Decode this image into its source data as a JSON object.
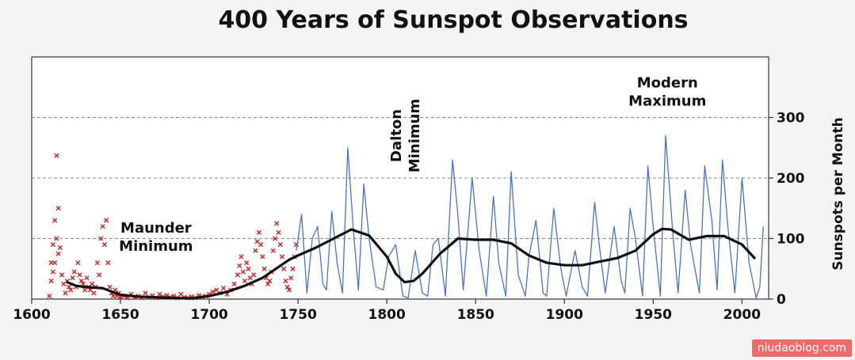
{
  "chart_data": {
    "type": "line",
    "title": "400 Years of Sunspot Observations",
    "ylabel": "Sunspots per Month",
    "xlabel": "",
    "xlim": [
      1600,
      2015
    ],
    "ylim": [
      0,
      400
    ],
    "xticks": [
      "1600",
      "1650",
      "1700",
      "1750",
      "1800",
      "1850",
      "1900",
      "1950",
      "2000"
    ],
    "yticks": [
      "0",
      "100",
      "200",
      "300"
    ],
    "grid": "horizontal dashed",
    "annotations": [
      {
        "lines": [
          "Maunder",
          "Minimum"
        ],
        "x": 1670,
        "y": 110
      },
      {
        "lines": [
          "Dalton",
          "Minimum"
        ],
        "x": 1808,
        "y": 270,
        "rotated": true
      },
      {
        "lines": [
          "Modern",
          "Maximum"
        ],
        "x": 1958,
        "y": 350
      }
    ],
    "colors": {
      "early": "#cc2222",
      "telescopic": "#4a72c8",
      "smooth": "#111111"
    },
    "series": [
      {
        "kind": "scatter",
        "marker": "x",
        "color": "#cc2222",
        "points": [
          [
            1610,
            5
          ],
          [
            1611,
            60
          ],
          [
            1611,
            30
          ],
          [
            1612,
            90
          ],
          [
            1612,
            45
          ],
          [
            1613,
            130
          ],
          [
            1613,
            60
          ],
          [
            1614,
            237
          ],
          [
            1614,
            100
          ],
          [
            1615,
            150
          ],
          [
            1615,
            75
          ],
          [
            1616,
            85
          ],
          [
            1617,
            40
          ],
          [
            1618,
            25
          ],
          [
            1619,
            10
          ],
          [
            1620,
            30
          ],
          [
            1621,
            20
          ],
          [
            1622,
            15
          ],
          [
            1623,
            35
          ],
          [
            1624,
            45
          ],
          [
            1625,
            20
          ],
          [
            1626,
            60
          ],
          [
            1627,
            40
          ],
          [
            1628,
            30
          ],
          [
            1629,
            25
          ],
          [
            1630,
            15
          ],
          [
            1631,
            35
          ],
          [
            1632,
            20
          ],
          [
            1633,
            15
          ],
          [
            1634,
            25
          ],
          [
            1635,
            10
          ],
          [
            1636,
            20
          ],
          [
            1637,
            60
          ],
          [
            1638,
            40
          ],
          [
            1639,
            100
          ],
          [
            1640,
            120
          ],
          [
            1641,
            90
          ],
          [
            1642,
            130
          ],
          [
            1643,
            60
          ],
          [
            1644,
            20
          ],
          [
            1645,
            10
          ],
          [
            1646,
            5
          ],
          [
            1647,
            15
          ],
          [
            1648,
            5
          ],
          [
            1649,
            10
          ],
          [
            1650,
            3
          ],
          [
            1652,
            5
          ],
          [
            1654,
            2
          ],
          [
            1656,
            8
          ],
          [
            1658,
            3
          ],
          [
            1660,
            5
          ],
          [
            1662,
            2
          ],
          [
            1664,
            10
          ],
          [
            1666,
            3
          ],
          [
            1668,
            6
          ],
          [
            1670,
            2
          ],
          [
            1672,
            8
          ],
          [
            1674,
            4
          ],
          [
            1676,
            6
          ],
          [
            1678,
            3
          ],
          [
            1680,
            5
          ],
          [
            1682,
            2
          ],
          [
            1684,
            8
          ],
          [
            1686,
            3
          ],
          [
            1688,
            2
          ],
          [
            1690,
            4
          ],
          [
            1692,
            2
          ],
          [
            1694,
            6
          ],
          [
            1696,
            4
          ],
          [
            1698,
            5
          ],
          [
            1700,
            8
          ],
          [
            1702,
            12
          ],
          [
            1704,
            15
          ],
          [
            1706,
            10
          ],
          [
            1708,
            18
          ],
          [
            1710,
            8
          ],
          [
            1712,
            15
          ],
          [
            1714,
            25
          ],
          [
            1716,
            40
          ],
          [
            1717,
            55
          ],
          [
            1718,
            70
          ],
          [
            1719,
            45
          ],
          [
            1720,
            30
          ],
          [
            1721,
            60
          ],
          [
            1722,
            50
          ],
          [
            1723,
            35
          ],
          [
            1724,
            25
          ],
          [
            1725,
            40
          ],
          [
            1726,
            80
          ],
          [
            1727,
            95
          ],
          [
            1728,
            110
          ],
          [
            1729,
            90
          ],
          [
            1730,
            70
          ],
          [
            1731,
            50
          ],
          [
            1732,
            35
          ],
          [
            1733,
            25
          ],
          [
            1734,
            30
          ],
          [
            1735,
            45
          ],
          [
            1736,
            80
          ],
          [
            1737,
            100
          ],
          [
            1738,
            125
          ],
          [
            1739,
            110
          ],
          [
            1740,
            90
          ],
          [
            1741,
            70
          ],
          [
            1742,
            50
          ],
          [
            1743,
            30
          ],
          [
            1744,
            20
          ],
          [
            1745,
            15
          ],
          [
            1746,
            35
          ],
          [
            1747,
            50
          ],
          [
            1748,
            70
          ],
          [
            1749,
            90
          ]
        ]
      },
      {
        "kind": "line",
        "name": "",
        "color": "#4a72c8",
        "x": [
          1749,
          1752,
          1755,
          1758,
          1761,
          1764,
          1766,
          1769,
          1772,
          1775,
          1778,
          1781,
          1784,
          1787,
          1790,
          1794,
          1798,
          1801,
          1805,
          1809,
          1812,
          1816,
          1820,
          1823,
          1826,
          1829,
          1833,
          1837,
          1840,
          1843,
          1848,
          1852,
          1856,
          1860,
          1863,
          1867,
          1870,
          1874,
          1878,
          1880,
          1884,
          1888,
          1890,
          1894,
          1898,
          1901,
          1906,
          1910,
          1913,
          1917,
          1920,
          1923,
          1928,
          1932,
          1934,
          1937,
          1940,
          1944,
          1947,
          1950,
          1954,
          1957,
          1961,
          1964,
          1968,
          1971,
          1976,
          1979,
          1983,
          1986,
          1989,
          1992,
          1996,
          2000,
          2004,
          2008,
          2010,
          2012
        ],
        "y": [
          80,
          140,
          10,
          100,
          120,
          25,
          15,
          145,
          60,
          10,
          250,
          120,
          15,
          190,
          100,
          20,
          15,
          70,
          90,
          5,
          2,
          80,
          10,
          5,
          90,
          100,
          5,
          230,
          140,
          15,
          200,
          80,
          5,
          170,
          60,
          5,
          210,
          40,
          5,
          70,
          130,
          10,
          5,
          150,
          50,
          5,
          80,
          20,
          5,
          160,
          80,
          10,
          120,
          30,
          10,
          150,
          100,
          5,
          220,
          120,
          5,
          270,
          110,
          10,
          180,
          90,
          10,
          220,
          130,
          15,
          230,
          120,
          10,
          200,
          60,
          2,
          20,
          120
        ]
      },
      {
        "kind": "line",
        "name": "",
        "color": "#111111",
        "x": [
          1620,
          1625,
          1630,
          1640,
          1650,
          1660,
          1670,
          1680,
          1690,
          1700,
          1710,
          1720,
          1730,
          1740,
          1745,
          1750,
          1760,
          1770,
          1780,
          1790,
          1800,
          1805,
          1810,
          1815,
          1820,
          1830,
          1840,
          1850,
          1860,
          1870,
          1880,
          1890,
          1900,
          1910,
          1920,
          1930,
          1940,
          1950,
          1955,
          1960,
          1970,
          1980,
          1990,
          2000,
          2007
        ],
        "y": [
          28,
          22,
          20,
          18,
          7,
          4,
          3,
          2,
          1,
          5,
          12,
          22,
          35,
          55,
          65,
          72,
          85,
          100,
          115,
          105,
          70,
          42,
          28,
          30,
          42,
          75,
          100,
          98,
          98,
          92,
          72,
          60,
          56,
          56,
          62,
          68,
          80,
          107,
          116,
          115,
          98,
          104,
          104,
          90,
          68
        ]
      }
    ]
  },
  "watermark": "niudaoblog.com"
}
